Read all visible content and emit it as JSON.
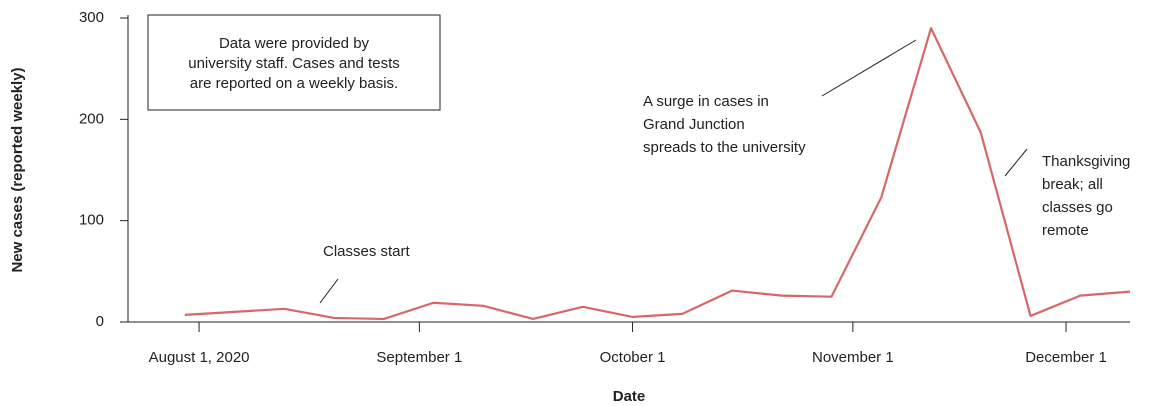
{
  "chart_data": {
    "type": "line",
    "x_label": "Date",
    "y_label": "New cases (reported weekly)",
    "x": [
      "2020-07-30",
      "2020-08-06",
      "2020-08-13",
      "2020-08-20",
      "2020-08-27",
      "2020-09-03",
      "2020-09-10",
      "2020-09-17",
      "2020-09-24",
      "2020-10-01",
      "2020-10-08",
      "2020-10-15",
      "2020-10-22",
      "2020-10-29",
      "2020-11-05",
      "2020-11-12",
      "2020-11-19",
      "2020-11-26",
      "2020-12-03",
      "2020-12-10"
    ],
    "series": [
      {
        "name": "New cases",
        "color": "#d9666a",
        "values": [
          7,
          10,
          13,
          4,
          3,
          19,
          16,
          3,
          15,
          5,
          8,
          31,
          26,
          25,
          123,
          290,
          187,
          6,
          26,
          30
        ]
      }
    ],
    "xlim": [
      "2020-07-22",
      "2020-12-10"
    ],
    "xticks": [
      {
        "value": "2020-08-01",
        "label": "August 1, 2020"
      },
      {
        "value": "2020-09-01",
        "label": "September 1"
      },
      {
        "value": "2020-10-01",
        "label": "October 1"
      },
      {
        "value": "2020-11-01",
        "label": "November 1"
      },
      {
        "value": "2020-12-01",
        "label": "December 1"
      }
    ],
    "ylim": [
      0,
      300
    ],
    "yticks": [
      0,
      100,
      200,
      300
    ],
    "grid": false,
    "note": [
      "Data were provided by",
      "university staff. Cases and tests",
      "are reported on a weekly basis."
    ],
    "annotations": [
      {
        "text": [
          "Classes start"
        ]
      },
      {
        "text": [
          "A surge in cases in",
          "Grand Junction",
          "spreads to the university"
        ]
      },
      {
        "text": [
          "Thanksgiving",
          "break; all",
          "classes go",
          "remote"
        ]
      }
    ]
  }
}
